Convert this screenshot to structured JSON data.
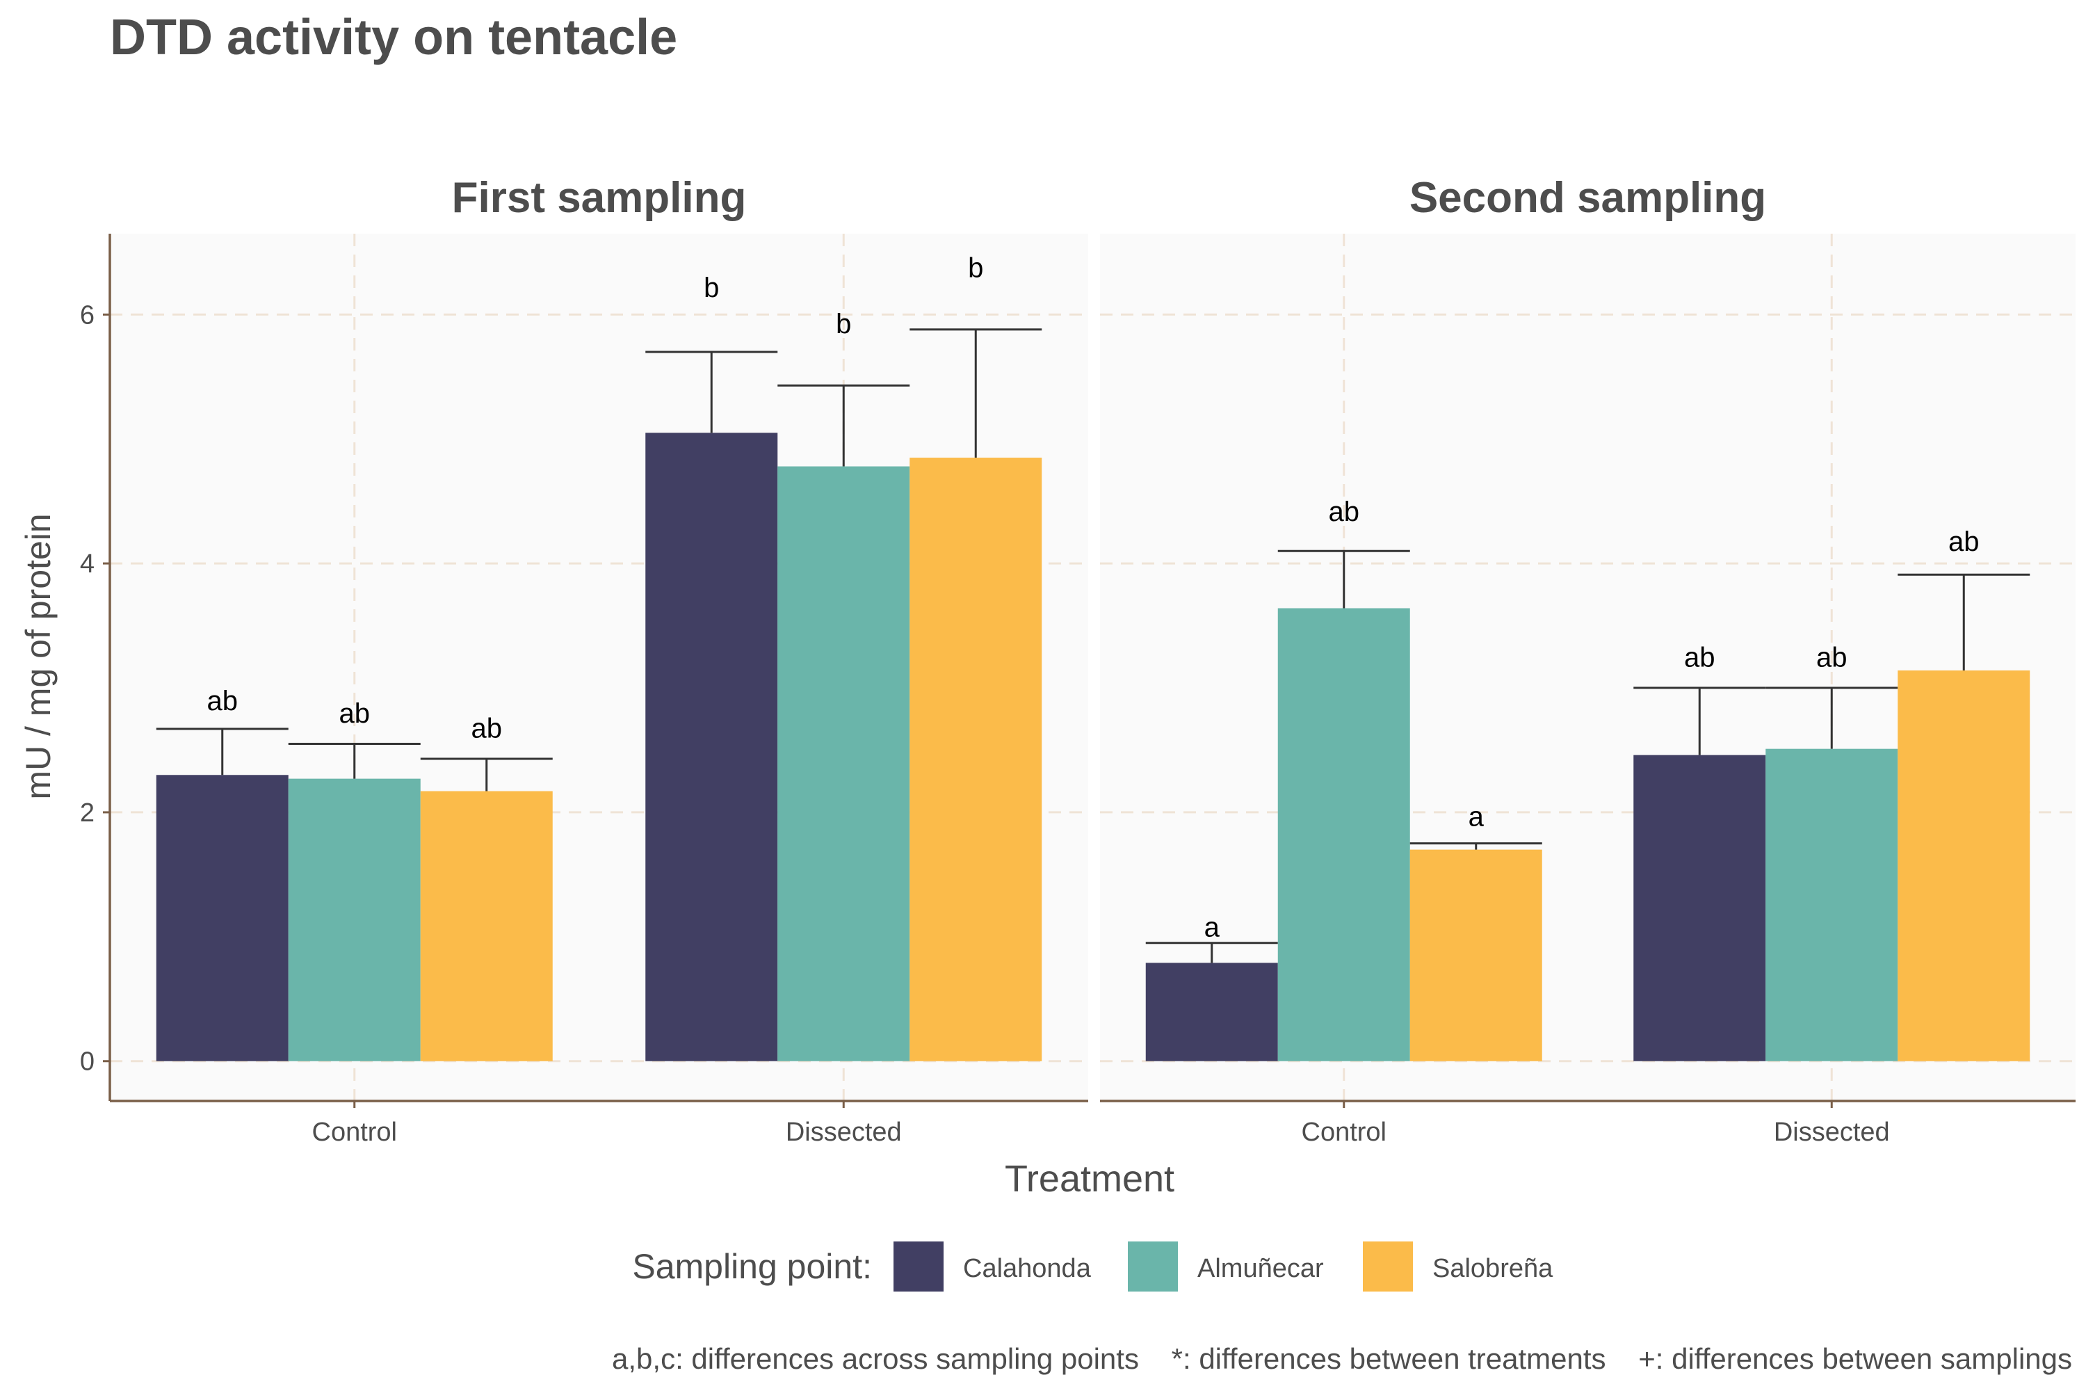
{
  "chart_data": {
    "type": "bar",
    "title": "DTD activity on tentacle",
    "xlabel": "Treatment",
    "ylabel": "mU / mg  of protein",
    "ylim": [
      -0.32,
      6.65
    ],
    "yticks": [
      0,
      2,
      4,
      6
    ],
    "grid": true,
    "legend": {
      "title": "Sampling point:",
      "placement": "bottom",
      "entries": [
        "Calahonda",
        "Almuñecar",
        "Salobreña"
      ]
    },
    "series_colors": {
      "Calahonda": "#413f63",
      "Almuñecar": "#6ab5aa",
      "Salobreña": "#fbbb4a"
    },
    "footnote": "a,b,c: differences across sampling points    *: differences between treatments    +: differences between samplings",
    "facets": [
      {
        "name": "First sampling",
        "categories": [
          "Control",
          "Dissected"
        ],
        "series": [
          {
            "name": "Calahonda",
            "values": [
              2.3,
              5.05
            ],
            "err_upper": [
              2.67,
              5.7
            ],
            "labels": [
              "ab",
              "b"
            ],
            "label_y": [
              2.9,
              6.22
            ]
          },
          {
            "name": "Almuñecar",
            "values": [
              2.27,
              4.78
            ],
            "err_upper": [
              2.55,
              5.43
            ],
            "labels": [
              "ab",
              "b"
            ],
            "label_y": [
              2.8,
              5.93
            ]
          },
          {
            "name": "Salobreña",
            "values": [
              2.17,
              4.85
            ],
            "err_upper": [
              2.43,
              5.88
            ],
            "labels": [
              "ab",
              "b"
            ],
            "label_y": [
              2.68,
              6.38
            ]
          }
        ]
      },
      {
        "name": "Second sampling",
        "categories": [
          "Control",
          "Dissected"
        ],
        "series": [
          {
            "name": "Calahonda",
            "values": [
              0.79,
              2.46
            ],
            "err_upper": [
              0.95,
              3.0
            ],
            "labels": [
              "a",
              "ab"
            ],
            "label_y": [
              1.08,
              3.25
            ]
          },
          {
            "name": "Almuñecar",
            "values": [
              3.64,
              2.51
            ],
            "err_upper": [
              4.1,
              3.0
            ],
            "labels": [
              "ab",
              "ab"
            ],
            "label_y": [
              4.42,
              3.25
            ]
          },
          {
            "name": "Salobreña",
            "values": [
              1.7,
              3.14
            ],
            "err_upper": [
              1.75,
              3.91
            ],
            "labels": [
              "a",
              "ab"
            ],
            "label_y": [
              1.97,
              4.18
            ]
          }
        ]
      }
    ]
  }
}
